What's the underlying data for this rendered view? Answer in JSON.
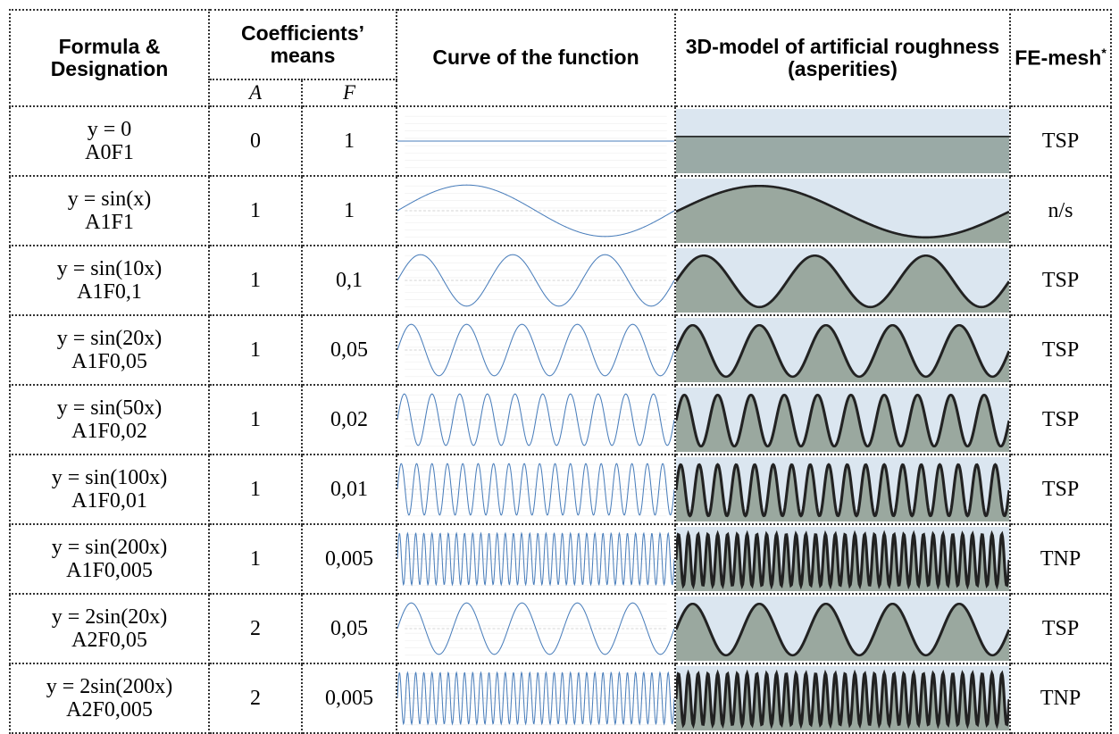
{
  "header": {
    "formula": "Formula &",
    "designation": "Designation",
    "coefficients": "Coefficients’ means",
    "a": "A",
    "f": "F",
    "curve": "Curve of the function",
    "model": "3D-model of artificial roughness (asperities)",
    "mesh": "FE-mesh",
    "mesh_note": "*"
  },
  "rows": [
    {
      "formula": "y = 0",
      "designation": "A0F1",
      "a": "0",
      "f": "1",
      "mesh": "TSP"
    },
    {
      "formula": "y = sin(x)",
      "designation": "A1F1",
      "a": "1",
      "f": "1",
      "mesh": "n/s"
    },
    {
      "formula": "y = sin(10x)",
      "designation": "A1F0,1",
      "a": "1",
      "f": "0,1",
      "mesh": "TSP"
    },
    {
      "formula": "y = sin(20x)",
      "designation": "A1F0,05",
      "a": "1",
      "f": "0,05",
      "mesh": "TSP"
    },
    {
      "formula": "y = sin(50x)",
      "designation": "A1F0,02",
      "a": "1",
      "f": "0,02",
      "mesh": "TSP"
    },
    {
      "formula": "y = sin(100x)",
      "designation": "A1F0,01",
      "a": "1",
      "f": "0,01",
      "mesh": "TSP"
    },
    {
      "formula": "y = sin(200x)",
      "designation": "A1F0,005",
      "a": "1",
      "f": "0,005",
      "mesh": "TNP"
    },
    {
      "formula": "y = 2sin(20x)",
      "designation": "A2F0,05",
      "a": "2",
      "f": "0,05",
      "mesh": "TSP"
    },
    {
      "formula": "y = 2sin(200x)",
      "designation": "A2F0,005",
      "a": "2",
      "f": "0,005",
      "mesh": "TNP"
    }
  ]
}
